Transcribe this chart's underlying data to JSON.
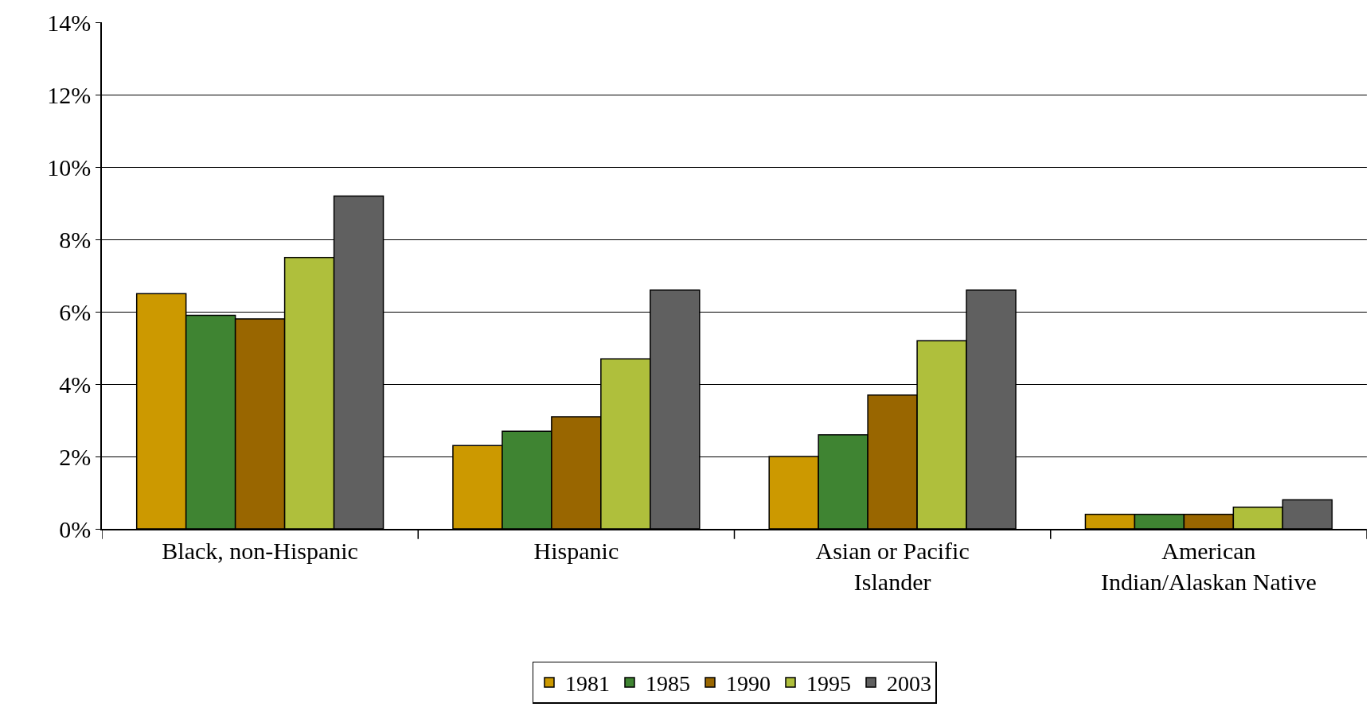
{
  "chart_data": {
    "type": "bar",
    "categories": [
      "Black, non-Hispanic",
      "Hispanic",
      "Asian or Pacific\nIslander",
      "American\nIndian/Alaskan Native"
    ],
    "series": [
      {
        "name": "1981",
        "color": "#cc9900",
        "values": [
          6.5,
          2.3,
          2.0,
          0.4
        ]
      },
      {
        "name": "1985",
        "color": "#3f8432",
        "values": [
          5.9,
          2.7,
          2.6,
          0.4
        ]
      },
      {
        "name": "1990",
        "color": "#996600",
        "values": [
          5.8,
          3.1,
          3.7,
          0.4
        ]
      },
      {
        "name": "1995",
        "color": "#afbf3c",
        "values": [
          7.5,
          4.7,
          5.2,
          0.6
        ]
      },
      {
        "name": "2003",
        "color": "#606060",
        "values": [
          9.2,
          6.6,
          6.6,
          0.8
        ]
      }
    ],
    "ylim": [
      0,
      14
    ],
    "yticks": [
      {
        "value": 0,
        "label": "0%"
      },
      {
        "value": 2,
        "label": "2%"
      },
      {
        "value": 4,
        "label": "4%"
      },
      {
        "value": 6,
        "label": "6%"
      },
      {
        "value": 8,
        "label": "8%"
      },
      {
        "value": 10,
        "label": "10%"
      },
      {
        "value": 12,
        "label": "12%"
      },
      {
        "value": 14,
        "label": "14%"
      }
    ],
    "grid": "y",
    "legend": "bottom"
  }
}
